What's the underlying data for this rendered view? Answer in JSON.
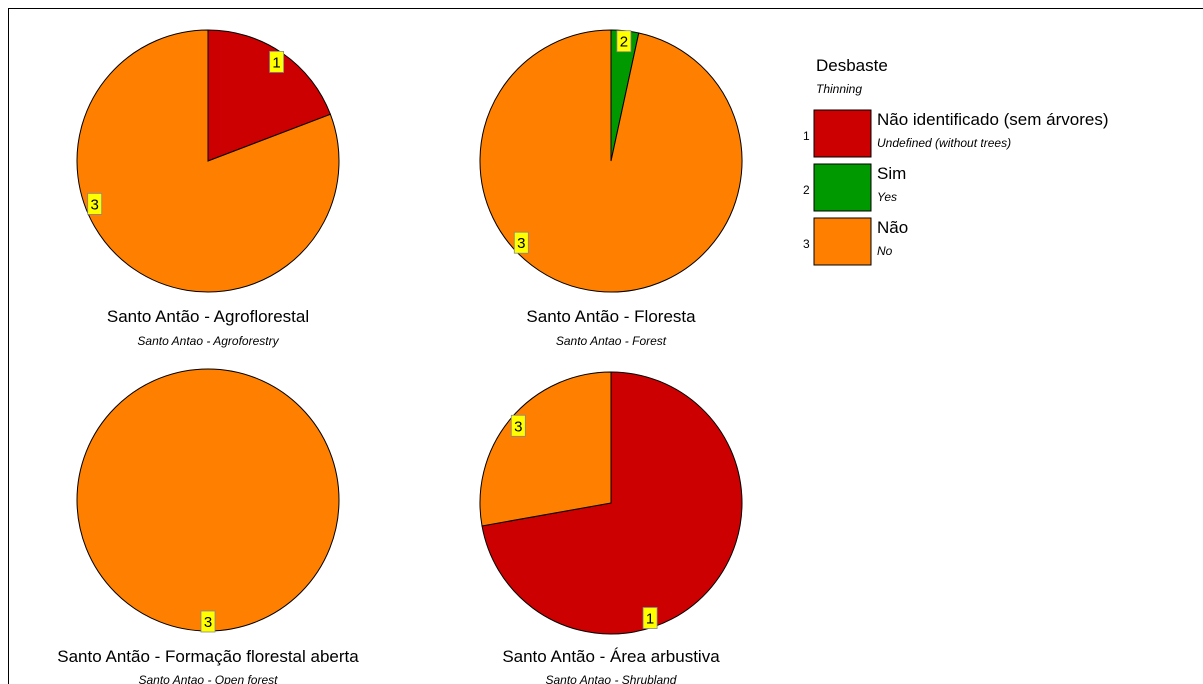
{
  "chart_data": {
    "type": "pie",
    "colors": {
      "1": "#cc0000",
      "2": "#009900",
      "3": "#ff7f00"
    },
    "legend": {
      "title": "Desbaste",
      "subtitle": "Thinning",
      "placement": "top-right",
      "items": [
        {
          "code": "1",
          "label": "Não identificado (sem árvores)",
          "sublabel": "Undefined (without trees)"
        },
        {
          "code": "2",
          "label": "Sim",
          "sublabel": "Yes"
        },
        {
          "code": "3",
          "label": "Não",
          "sublabel": "No"
        }
      ]
    },
    "pies": [
      {
        "title": "Santo Antão - Agroflorestal",
        "subtitle": "Santo Antao - Agroforestry",
        "slices": [
          {
            "code": "1",
            "value": 19.2
          },
          {
            "code": "3",
            "value": 80.8
          }
        ]
      },
      {
        "title": "Santo Antão - Floresta",
        "subtitle": "Santo Antao - Forest",
        "slices": [
          {
            "code": "2",
            "value": 3.4
          },
          {
            "code": "3",
            "value": 96.6
          }
        ]
      },
      {
        "title": "Santo Antão - Formação florestal aberta",
        "subtitle": "Santo Antao - Open forest",
        "slices": [
          {
            "code": "3",
            "value": 100
          }
        ]
      },
      {
        "title": "Santo Antão - Área arbustiva",
        "subtitle": "Santo Antao - Shrubland",
        "slices": [
          {
            "code": "1",
            "value": 72.2
          },
          {
            "code": "3",
            "value": 27.8
          }
        ]
      }
    ]
  }
}
